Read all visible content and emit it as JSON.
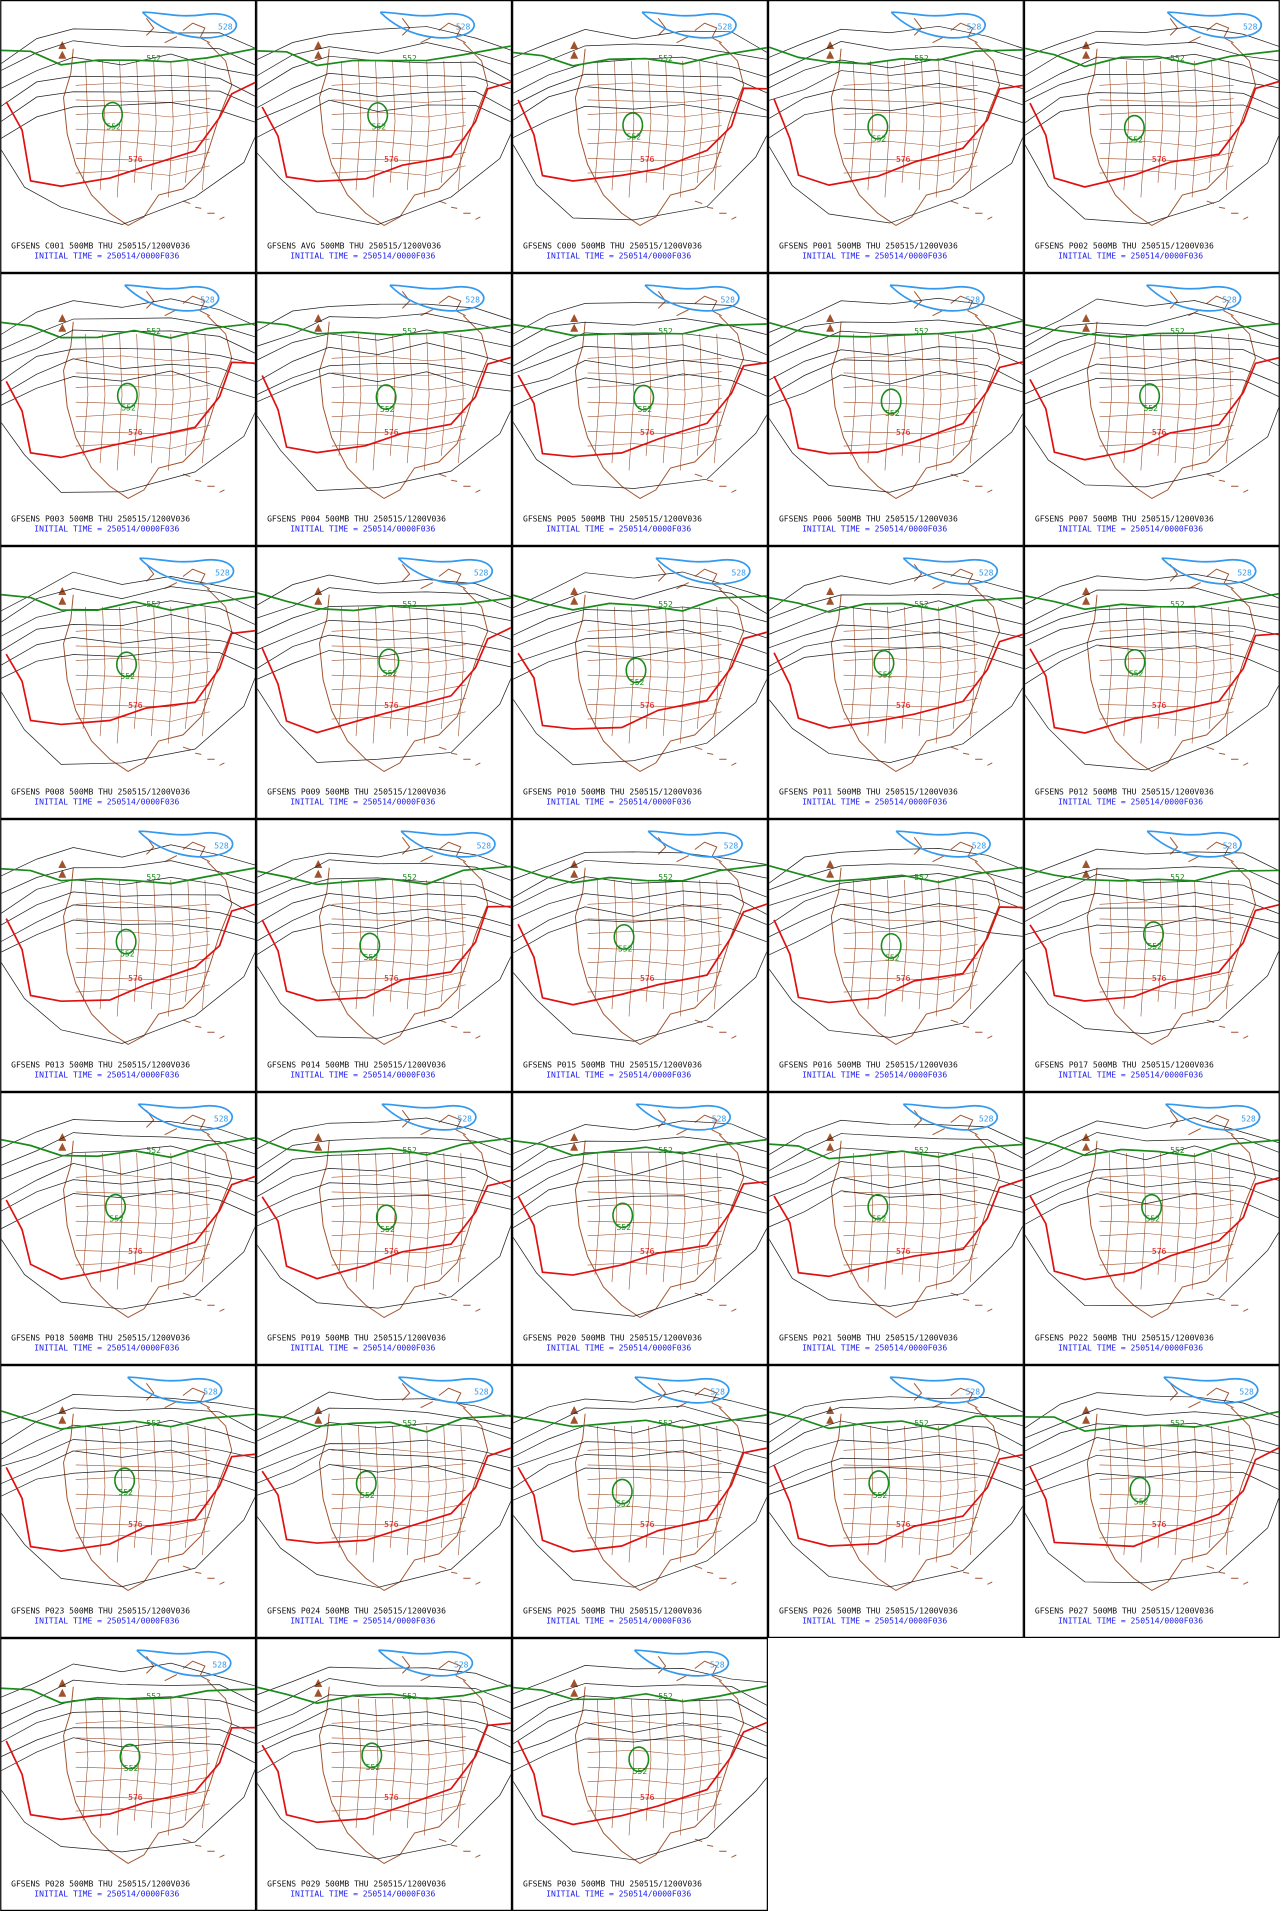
{
  "panels": [
    "GFSENS C001 500MB THU 250515/1200V036",
    "GFSENS AVG 500MB THU 250515/1200V036",
    "GFSENS C000 500MB THU 250515/1200V036",
    "GFSENS P001 500MB THU 250515/1200V036",
    "GFSENS P002 500MB THU 250515/1200V036",
    "GFSENS P003 500MB THU 250515/1200V036",
    "GFSENS P004 500MB THU 250515/1200V036",
    "GFSENS P005 500MB THU 250515/1200V036",
    "GFSENS P006 500MB THU 250515/1200V036",
    "GFSENS P007 500MB THU 250515/1200V036",
    "GFSENS P008 500MB THU 250515/1200V036",
    "GFSENS P009 500MB THU 250515/1200V036",
    "GFSENS P010 500MB THU 250515/1200V036",
    "GFSENS P011 500MB THU 250515/1200V036",
    "GFSENS P012 500MB THU 250515/1200V036",
    "GFSENS P013 500MB THU 250515/1200V036",
    "GFSENS P014 500MB THU 250515/1200V036",
    "GFSENS P015 500MB THU 250515/1200V036",
    "GFSENS P016 500MB THU 250515/1200V036",
    "GFSENS P017 500MB THU 250515/1200V036",
    "GFSENS P018 500MB THU 250515/1200V036",
    "GFSENS P019 500MB THU 250515/1200V036",
    "GFSENS P020 500MB THU 250515/1200V036",
    "GFSENS P021 500MB THU 250515/1200V036",
    "GFSENS P022 500MB THU 250515/1200V036",
    "GFSENS P023 500MB THU 250515/1200V036",
    "GFSENS P024 500MB THU 250515/1200V036",
    "GFSENS P025 500MB THU 250515/1200V036",
    "GFSENS P026 500MB THU 250515/1200V036",
    "GFSENS P027 500MB THU 250515/1200V036",
    "GFSENS P028 500MB THU 250515/1200V036",
    "GFSENS P029 500MB THU 250515/1200V036",
    "GFSENS P030 500MB THU 250515/1200V036"
  ],
  "initial_time": "INITIAL TIME = 250514/0000F036",
  "contour_labels": {
    "red": "576",
    "green": "552",
    "blue": "528"
  }
}
